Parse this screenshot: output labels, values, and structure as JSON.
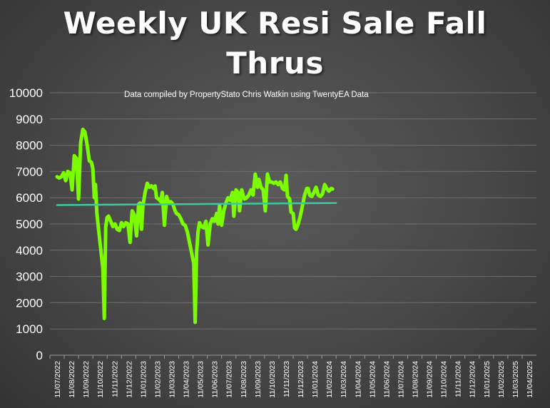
{
  "chart_data": {
    "type": "line",
    "title_lines": [
      "Weekly UK Resi Sale Fall",
      "Thrus"
    ],
    "subtitle": "Data compiled by PropertyStato Chris Watkin using TwentyEA Data",
    "ylim": [
      0,
      10000
    ],
    "yticks": [
      0,
      1000,
      2000,
      3000,
      4000,
      5000,
      6000,
      7000,
      8000,
      9000,
      10000
    ],
    "x_labels": [
      "11/07/2022",
      "11/08/2022",
      "11/09/2022",
      "11/10/2022",
      "11/11/2022",
      "11/12/2022",
      "11/01/2023",
      "11/02/2023",
      "11/03/2023",
      "11/04/2023",
      "11/05/2023",
      "11/06/2023",
      "11/07/2023",
      "11/08/2023",
      "11/09/2023",
      "11/10/2023",
      "11/11/2023",
      "11/12/2023",
      "11/01/2024",
      "11/02/2024",
      "11/03/2024",
      "11/04/2024",
      "11/05/2024",
      "11/06/2024",
      "11/07/2024",
      "11/08/2024",
      "11/09/2024",
      "11/10/2024",
      "11/11/2024",
      "11/12/2024",
      "11/01/2025",
      "11/02/2025",
      "11/03/2025",
      "11/04/2025"
    ],
    "grid": true,
    "series": [
      {
        "color": "#7cfc00",
        "points": [
          [
            0,
            6800
          ],
          [
            0.15,
            6750
          ],
          [
            0.3,
            6800
          ],
          [
            0.45,
            6950
          ],
          [
            0.6,
            6650
          ],
          [
            0.75,
            7000
          ],
          [
            0.9,
            6950
          ],
          [
            1.05,
            6300
          ],
          [
            1.2,
            7600
          ],
          [
            1.35,
            7500
          ],
          [
            1.5,
            5950
          ],
          [
            1.65,
            8100
          ],
          [
            1.8,
            8600
          ],
          [
            1.95,
            8500
          ],
          [
            2.1,
            8000
          ],
          [
            2.25,
            7400
          ],
          [
            2.4,
            7350
          ],
          [
            2.5,
            7100
          ],
          [
            2.6,
            6000
          ],
          [
            2.68,
            6500
          ],
          [
            2.78,
            5400
          ],
          [
            2.9,
            4800
          ],
          [
            3.0,
            4300
          ],
          [
            3.1,
            3800
          ],
          [
            3.2,
            3300
          ],
          [
            3.3,
            1400
          ],
          [
            3.4,
            4900
          ],
          [
            3.5,
            5250
          ],
          [
            3.6,
            5300
          ],
          [
            3.75,
            5100
          ],
          [
            3.9,
            4900
          ],
          [
            4.05,
            5000
          ],
          [
            4.2,
            4800
          ],
          [
            4.35,
            4750
          ],
          [
            4.5,
            5050
          ],
          [
            4.65,
            4900
          ],
          [
            4.8,
            5050
          ],
          [
            4.95,
            5000
          ],
          [
            5.1,
            4300
          ],
          [
            5.25,
            5500
          ],
          [
            5.4,
            5350
          ],
          [
            5.55,
            4550
          ],
          [
            5.7,
            5750
          ],
          [
            5.8,
            5800
          ],
          [
            5.9,
            4800
          ],
          [
            6.0,
            5700
          ],
          [
            6.15,
            6200
          ],
          [
            6.3,
            6550
          ],
          [
            6.45,
            6400
          ],
          [
            6.6,
            6450
          ],
          [
            6.75,
            6350
          ],
          [
            6.85,
            6450
          ],
          [
            6.95,
            6000
          ],
          [
            7.1,
            5950
          ],
          [
            7.25,
            5850
          ],
          [
            7.35,
            6200
          ],
          [
            7.5,
            4950
          ],
          [
            7.65,
            6050
          ],
          [
            7.8,
            5800
          ],
          [
            7.95,
            5850
          ],
          [
            8.1,
            5750
          ],
          [
            8.25,
            5500
          ],
          [
            8.35,
            5400
          ],
          [
            8.5,
            5350
          ],
          [
            8.65,
            5200
          ],
          [
            8.8,
            5000
          ],
          [
            8.95,
            4950
          ],
          [
            9.1,
            4700
          ],
          [
            9.25,
            4300
          ],
          [
            9.4,
            3900
          ],
          [
            9.55,
            3500
          ],
          [
            9.65,
            1250
          ],
          [
            9.75,
            3900
          ],
          [
            9.85,
            4700
          ],
          [
            9.95,
            5050
          ],
          [
            10.1,
            4900
          ],
          [
            10.25,
            4850
          ],
          [
            10.4,
            5100
          ],
          [
            10.55,
            4200
          ],
          [
            10.7,
            5000
          ],
          [
            10.85,
            5200
          ],
          [
            11.0,
            5100
          ],
          [
            11.15,
            5400
          ],
          [
            11.25,
            5000
          ],
          [
            11.35,
            5700
          ],
          [
            11.5,
            4950
          ],
          [
            11.65,
            5500
          ],
          [
            11.8,
            5800
          ],
          [
            11.95,
            6000
          ],
          [
            12.1,
            5900
          ],
          [
            12.25,
            6200
          ],
          [
            12.35,
            5300
          ],
          [
            12.5,
            6300
          ],
          [
            12.65,
            6200
          ],
          [
            12.75,
            5500
          ],
          [
            12.9,
            6300
          ],
          [
            13.0,
            6100
          ],
          [
            13.1,
            5950
          ],
          [
            13.25,
            6000
          ],
          [
            13.4,
            6100
          ],
          [
            13.55,
            6300
          ],
          [
            13.7,
            6100
          ],
          [
            13.85,
            6900
          ],
          [
            14.0,
            6400
          ],
          [
            14.1,
            6700
          ],
          [
            14.25,
            6400
          ],
          [
            14.4,
            6300
          ],
          [
            14.55,
            5500
          ],
          [
            14.7,
            6900
          ],
          [
            14.85,
            6600
          ],
          [
            15.0,
            6600
          ],
          [
            15.15,
            6550
          ],
          [
            15.3,
            6600
          ],
          [
            15.45,
            6500
          ],
          [
            15.6,
            6600
          ],
          [
            15.75,
            6350
          ],
          [
            15.9,
            6300
          ],
          [
            16.0,
            6850
          ],
          [
            16.1,
            6050
          ],
          [
            16.25,
            5950
          ],
          [
            16.35,
            5450
          ],
          [
            16.5,
            5400
          ],
          [
            16.6,
            4850
          ],
          [
            16.7,
            4800
          ],
          [
            16.85,
            5000
          ],
          [
            17.0,
            5300
          ],
          [
            17.15,
            5700
          ],
          [
            17.3,
            6100
          ],
          [
            17.45,
            6350
          ],
          [
            17.55,
            6350
          ],
          [
            17.65,
            6100
          ],
          [
            17.8,
            6050
          ],
          [
            17.95,
            6200
          ],
          [
            18.1,
            6400
          ],
          [
            18.25,
            6100
          ],
          [
            18.4,
            6050
          ],
          [
            18.55,
            6150
          ],
          [
            18.7,
            6500
          ],
          [
            18.85,
            6350
          ],
          [
            19.0,
            6250
          ],
          [
            19.15,
            6350
          ],
          [
            19.25,
            6330
          ]
        ]
      },
      {
        "color": "#40c8a0",
        "points": [
          [
            0,
            5720
          ],
          [
            19.5,
            5800
          ]
        ]
      }
    ]
  }
}
